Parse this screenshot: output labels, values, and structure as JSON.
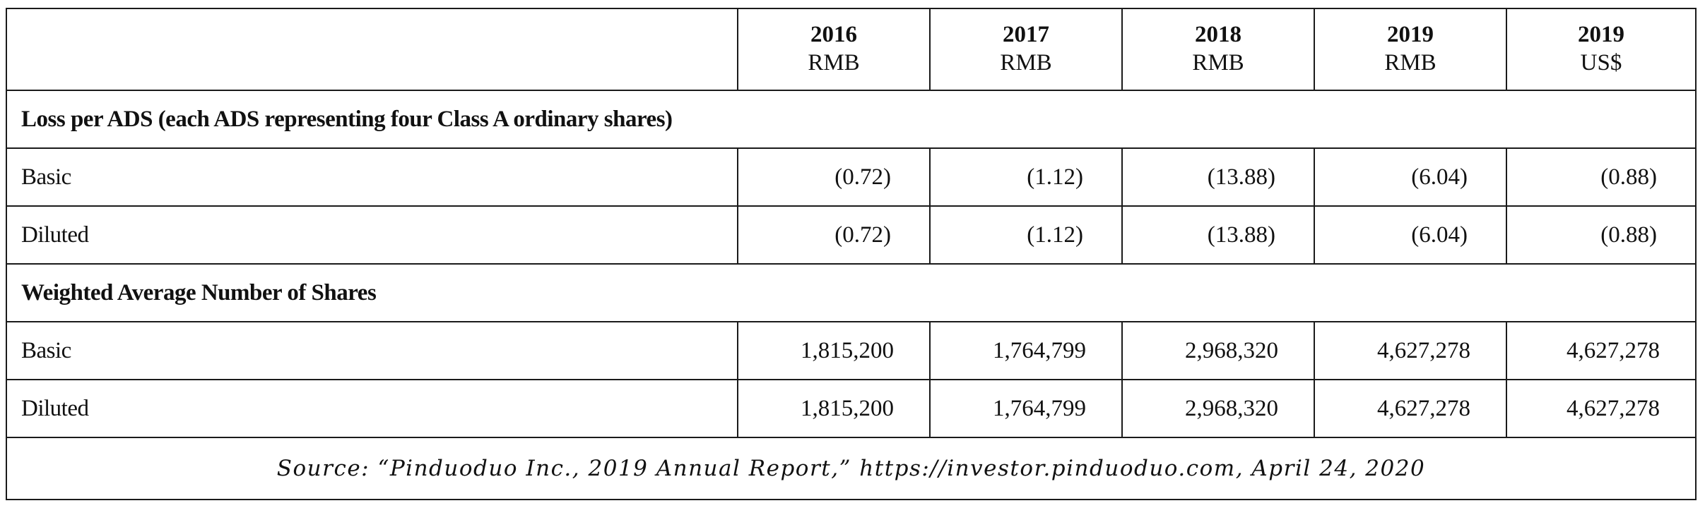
{
  "columns": [
    {
      "year": "2016",
      "currency": "RMB"
    },
    {
      "year": "2017",
      "currency": "RMB"
    },
    {
      "year": "2018",
      "currency": "RMB"
    },
    {
      "year": "2019",
      "currency": "RMB"
    },
    {
      "year": "2019",
      "currency": "US$"
    }
  ],
  "sections": [
    {
      "title": "Loss per ADS (each ADS representing four Class A ordinary shares)",
      "rows": [
        {
          "label": "Basic",
          "values": [
            "(0.72)",
            "(1.12)",
            "(13.88)",
            "(6.04)",
            "(0.88)"
          ]
        },
        {
          "label": "Diluted",
          "values": [
            "(0.72)",
            "(1.12)",
            "(13.88)",
            "(6.04)",
            "(0.88)"
          ]
        }
      ]
    },
    {
      "title": "Weighted Average Number of Shares",
      "rows": [
        {
          "label": "Basic",
          "values": [
            "1,815,200",
            "1,764,799",
            "2,968,320",
            "4,627,278",
            "4,627,278"
          ]
        },
        {
          "label": "Diluted",
          "values": [
            "1,815,200",
            "1,764,799",
            "2,968,320",
            "4,627,278",
            "4,627,278"
          ]
        }
      ]
    }
  ],
  "source": "Source: “Pinduoduo Inc., 2019 Annual Report,” https://investor.pinduoduo.com, April 24, 2020"
}
